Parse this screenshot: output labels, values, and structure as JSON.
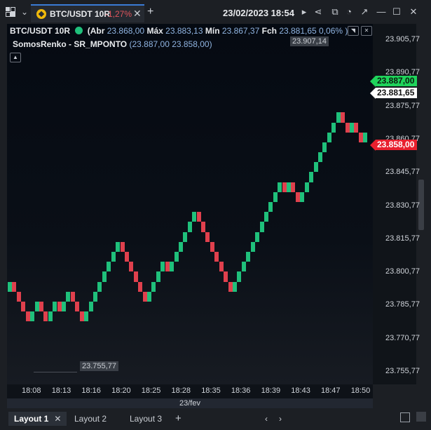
{
  "header": {
    "tab_symbol": "BTC/USDT 10R",
    "tab_change": "-1,27%",
    "tab_close": "✕",
    "add_tab": "+",
    "datetime": "23/02/2023 18:54"
  },
  "legend": {
    "symbol": "BTC/USDT 10R",
    "open_label": "(Abr",
    "open": "23.868,00",
    "high_label": "Máx",
    "high": "23.883,13",
    "low_label": "Mín",
    "low": "23.867,37",
    "close_label": "Fch",
    "close": "23.881,65",
    "change": "0,06% )",
    "indicator_name": "SomosRenko - SR_MPONTO",
    "indicator_values": "(23.887,00 23.858,00)"
  },
  "annotations": {
    "high_marker": "23.907,14",
    "low_marker": "23.755,77"
  },
  "price_tags": {
    "upper": "23.887,00",
    "current": "23.881,65",
    "lower": "23.858,00"
  },
  "colors": {
    "up": "#1fc07b",
    "down": "#e0404d",
    "accent": "#3a7bd5"
  },
  "chart_data": {
    "type": "renko",
    "y_ticks": [
      "23.905,77",
      "23.890,77",
      "23.875,77",
      "23.860,77",
      "23.845,77",
      "23.830,77",
      "23.815,77",
      "23.800,77",
      "23.785,77",
      "23.770,77",
      "23.755,77"
    ],
    "x_ticks": [
      "18:08",
      "18:13",
      "18:16",
      "18:20",
      "18:25",
      "18:28",
      "18:35",
      "18:36",
      "18:39",
      "18:43",
      "18:47",
      "18:50"
    ],
    "date_label": "23/fev",
    "brick_size": 4.5,
    "base_price": 23792.0,
    "bricks": [
      "up",
      "dn",
      "dn",
      "dn",
      "dn",
      "up",
      "up",
      "dn",
      "dn",
      "up",
      "up",
      "dn",
      "up",
      "up",
      "dn",
      "dn",
      "dn",
      "up",
      "up",
      "up",
      "up",
      "up",
      "up",
      "up",
      "up",
      "dn",
      "dn",
      "dn",
      "dn",
      "dn",
      "dn",
      "up",
      "up",
      "up",
      "up",
      "dn",
      "up",
      "up",
      "up",
      "up",
      "up",
      "up",
      "dn",
      "dn",
      "dn",
      "dn",
      "dn",
      "dn",
      "dn",
      "dn",
      "up",
      "up",
      "up",
      "up",
      "up",
      "up",
      "up",
      "up",
      "up",
      "up",
      "up",
      "dn",
      "up",
      "dn",
      "dn",
      "up",
      "up",
      "up",
      "up",
      "up",
      "up",
      "up",
      "up",
      "up",
      "dn",
      "dn",
      "up",
      "dn",
      "dn",
      "up"
    ]
  },
  "layouts": {
    "tabs": [
      "Layout 1",
      "Layout 2",
      "Layout 3"
    ],
    "active_close": "✕",
    "add": "+"
  }
}
